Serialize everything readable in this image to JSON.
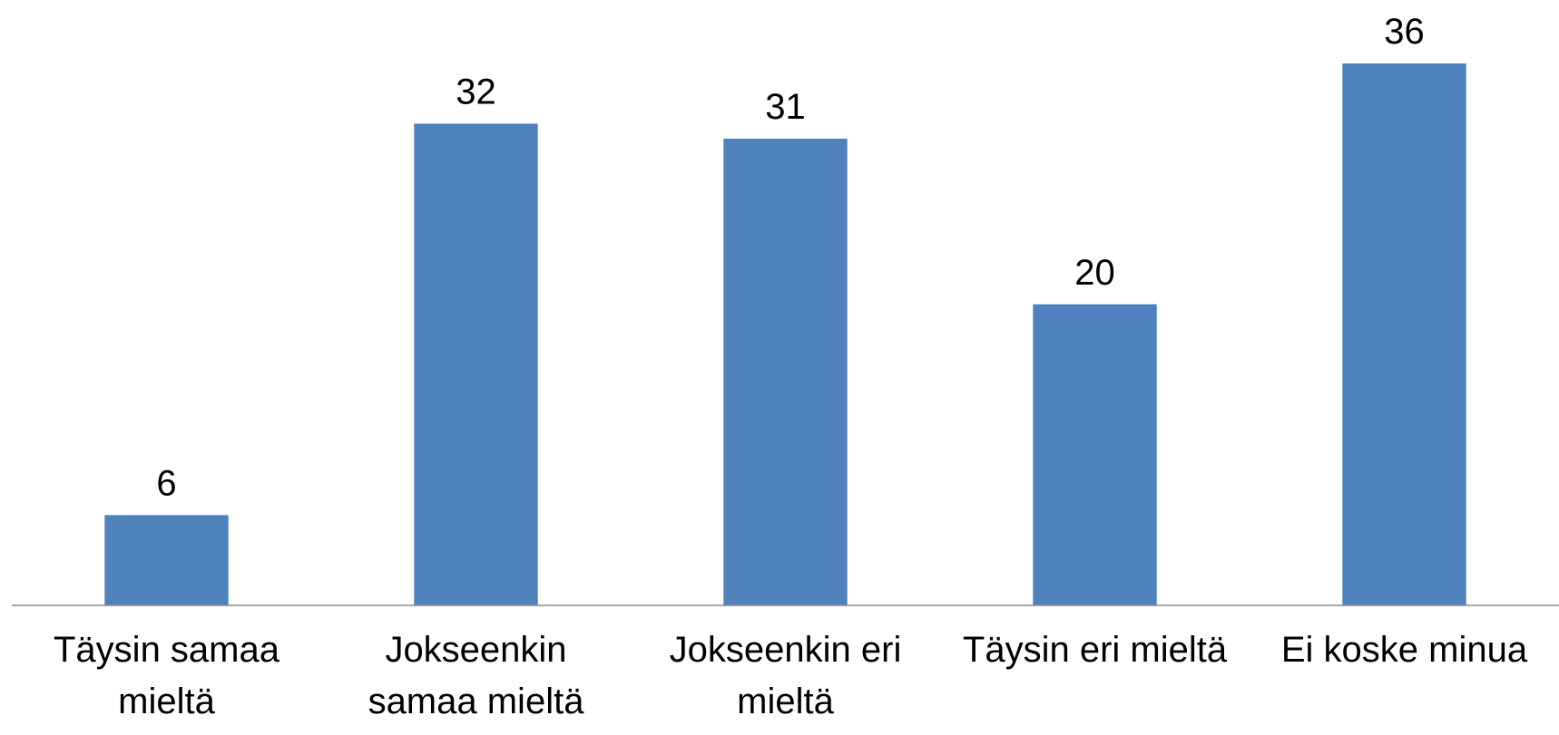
{
  "chart_data": {
    "type": "bar",
    "categories": [
      "Täysin samaa mieltä",
      "Jokseenkin samaa mieltä",
      "Jokseenkin eri mieltä",
      "Täysin eri mieltä",
      "Ei koske minua"
    ],
    "values": [
      6,
      32,
      31,
      20,
      36
    ],
    "color": "#4f81bd"
  }
}
